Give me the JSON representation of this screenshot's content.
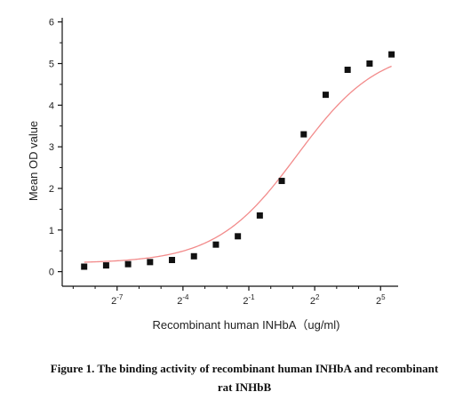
{
  "chart_data": {
    "type": "scatter",
    "xlabel": "Recombinant human  INHbA（ug/ml)",
    "ylabel": "Mean OD value",
    "x_scale": "log2",
    "xlim": [
      -9.5,
      5.8
    ],
    "ylim": [
      -0.35,
      6.1
    ],
    "y_ticks": [
      0,
      1,
      2,
      3,
      4,
      5,
      6
    ],
    "x_ticks": [
      {
        "value": -7,
        "base": "2",
        "exp": "-7"
      },
      {
        "value": -4,
        "base": "2",
        "exp": "-4"
      },
      {
        "value": -1,
        "base": "2",
        "exp": "-1"
      },
      {
        "value": 2,
        "base": "2",
        "exp": "2"
      },
      {
        "value": 5,
        "base": "2",
        "exp": "5"
      }
    ],
    "grid": false,
    "series": [
      {
        "marker": "square",
        "color": "#111111",
        "x_log2": [
          -8.5,
          -7.5,
          -6.5,
          -5.5,
          -4.5,
          -3.5,
          -2.5,
          -1.5,
          -0.5,
          0.5,
          1.5,
          2.5,
          3.5,
          4.5,
          5.5
        ],
        "y": [
          0.12,
          0.15,
          0.18,
          0.23,
          0.28,
          0.37,
          0.65,
          0.85,
          1.35,
          2.18,
          3.3,
          4.25,
          4.85,
          5.0,
          5.22
        ]
      }
    ],
    "fit_curve": {
      "type": "four-parameter-logistic",
      "color": "#f28b8b",
      "bottom": 0.2,
      "top": 5.4,
      "ec50_log2": 1.2,
      "hill": 0.78
    }
  },
  "caption": {
    "line1": "Figure 1. The binding activity of recombinant human INHbA and recombinant",
    "line2": "rat INHbB"
  }
}
